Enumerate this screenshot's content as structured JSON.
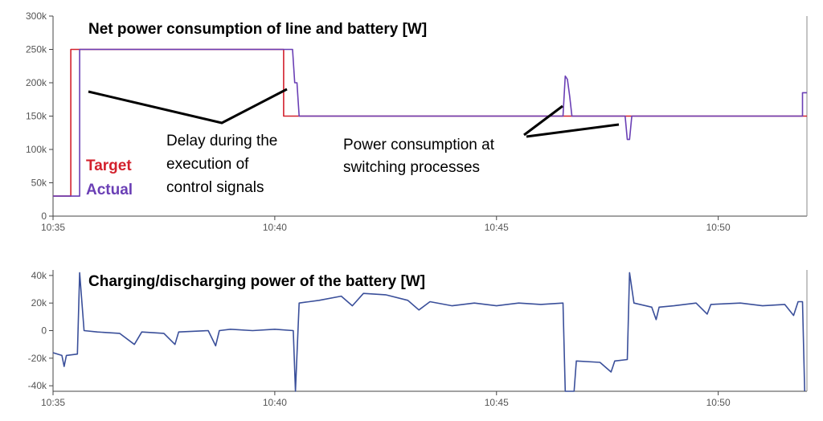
{
  "chart_data": [
    {
      "type": "line",
      "title": "Net power consumption of line and battery [W]",
      "xlabel": "",
      "ylabel": "",
      "x_range": [
        "10:35",
        "10:52"
      ],
      "ylim": [
        0,
        300000
      ],
      "yticks": [
        0,
        50000,
        100000,
        150000,
        200000,
        250000,
        300000
      ],
      "ytick_labels": [
        "0",
        "50k",
        "100k",
        "150k",
        "200k",
        "250k",
        "300k"
      ],
      "xticks": [
        "10:35",
        "10:40",
        "10:45",
        "10:50"
      ],
      "xtick_labels": [
        "10:35",
        "10:40",
        "10:45",
        "10:50"
      ],
      "grid": false,
      "legend": {
        "placement": "bottom-left",
        "entries": [
          {
            "label": "Target",
            "color": "#d3212d"
          },
          {
            "label": "Actual",
            "color": "#6a3fb5"
          }
        ]
      },
      "annotations": [
        {
          "lines": [
            "Delay during the",
            "execution of",
            "control signals"
          ]
        },
        {
          "lines": [
            "Power consumption at",
            "switching processes"
          ]
        }
      ],
      "series": [
        {
          "name": "Target",
          "color": "#d3212d",
          "points": [
            [
              "10:35:00",
              30000
            ],
            [
              "10:35:24",
              30000
            ],
            [
              "10:35:24",
              250000
            ],
            [
              "10:40:12",
              250000
            ],
            [
              "10:40:12",
              150000
            ],
            [
              "10:52:00",
              150000
            ]
          ]
        },
        {
          "name": "Actual",
          "color": "#6a3fb5",
          "points": [
            [
              "10:35:00",
              30000
            ],
            [
              "10:35:36",
              30000
            ],
            [
              "10:35:36",
              250000
            ],
            [
              "10:40:24",
              250000
            ],
            [
              "10:40:27",
              200000
            ],
            [
              "10:40:30",
              200000
            ],
            [
              "10:40:33",
              150000
            ],
            [
              "10:46:30",
              150000
            ],
            [
              "10:46:33",
              210000
            ],
            [
              "10:46:36",
              205000
            ],
            [
              "10:46:39",
              180000
            ],
            [
              "10:46:42",
              150000
            ],
            [
              "10:47:54",
              150000
            ],
            [
              "10:47:57",
              115000
            ],
            [
              "10:48:00",
              115000
            ],
            [
              "10:48:03",
              150000
            ],
            [
              "10:51:54",
              150000
            ],
            [
              "10:51:54",
              185000
            ],
            [
              "10:52:00",
              185000
            ]
          ]
        }
      ]
    },
    {
      "type": "line",
      "title": "Charging/discharging power of the battery [W]",
      "xlabel": "",
      "ylabel": "",
      "x_range": [
        "10:35",
        "10:52"
      ],
      "ylim": [
        -44000,
        44000
      ],
      "yticks": [
        -40000,
        -20000,
        0,
        20000,
        40000
      ],
      "ytick_labels": [
        "-40k",
        "-20k",
        "0",
        "20k",
        "40k"
      ],
      "xticks": [
        "10:35",
        "10:40",
        "10:45",
        "10:50"
      ],
      "xtick_labels": [
        "10:35",
        "10:40",
        "10:45",
        "10:50"
      ],
      "grid": false,
      "series": [
        {
          "color": "#3a4f9a",
          "points": [
            [
              "10:35:00",
              -16000
            ],
            [
              "10:35:12",
              -18000
            ],
            [
              "10:35:15",
              -26000
            ],
            [
              "10:35:18",
              -18000
            ],
            [
              "10:35:33",
              -17000
            ],
            [
              "10:35:36",
              42000
            ],
            [
              "10:35:42",
              0
            ],
            [
              "10:36:00",
              -1000
            ],
            [
              "10:36:30",
              -2000
            ],
            [
              "10:36:50",
              -10000
            ],
            [
              "10:37:00",
              -1000
            ],
            [
              "10:37:30",
              -2000
            ],
            [
              "10:37:45",
              -10000
            ],
            [
              "10:37:50",
              -1000
            ],
            [
              "10:38:30",
              0
            ],
            [
              "10:38:40",
              -11000
            ],
            [
              "10:38:45",
              0
            ],
            [
              "10:39:00",
              1000
            ],
            [
              "10:39:30",
              0
            ],
            [
              "10:40:00",
              1000
            ],
            [
              "10:40:25",
              0
            ],
            [
              "10:40:28",
              -44000
            ],
            [
              "10:40:33",
              20000
            ],
            [
              "10:41:00",
              22000
            ],
            [
              "10:41:30",
              25000
            ],
            [
              "10:41:45",
              18000
            ],
            [
              "10:42:00",
              27000
            ],
            [
              "10:42:30",
              26000
            ],
            [
              "10:43:00",
              22000
            ],
            [
              "10:43:15",
              15000
            ],
            [
              "10:43:30",
              21000
            ],
            [
              "10:44:00",
              18000
            ],
            [
              "10:44:30",
              20000
            ],
            [
              "10:45:00",
              18000
            ],
            [
              "10:45:30",
              20000
            ],
            [
              "10:46:00",
              19000
            ],
            [
              "10:46:30",
              20000
            ],
            [
              "10:46:33",
              -44000
            ],
            [
              "10:46:45",
              -44000
            ],
            [
              "10:46:48",
              -22000
            ],
            [
              "10:47:20",
              -23000
            ],
            [
              "10:47:35",
              -30000
            ],
            [
              "10:47:40",
              -22000
            ],
            [
              "10:47:57",
              -21000
            ],
            [
              "10:48:00",
              42000
            ],
            [
              "10:48:06",
              20000
            ],
            [
              "10:48:30",
              17000
            ],
            [
              "10:48:36",
              8000
            ],
            [
              "10:48:40",
              17000
            ],
            [
              "10:49:00",
              18000
            ],
            [
              "10:49:30",
              20000
            ],
            [
              "10:49:45",
              12000
            ],
            [
              "10:49:50",
              19000
            ],
            [
              "10:50:30",
              20000
            ],
            [
              "10:51:00",
              18000
            ],
            [
              "10:51:30",
              19000
            ],
            [
              "10:51:42",
              11000
            ],
            [
              "10:51:48",
              21000
            ],
            [
              "10:51:54",
              21000
            ],
            [
              "10:51:57",
              -44000
            ]
          ]
        }
      ]
    }
  ]
}
